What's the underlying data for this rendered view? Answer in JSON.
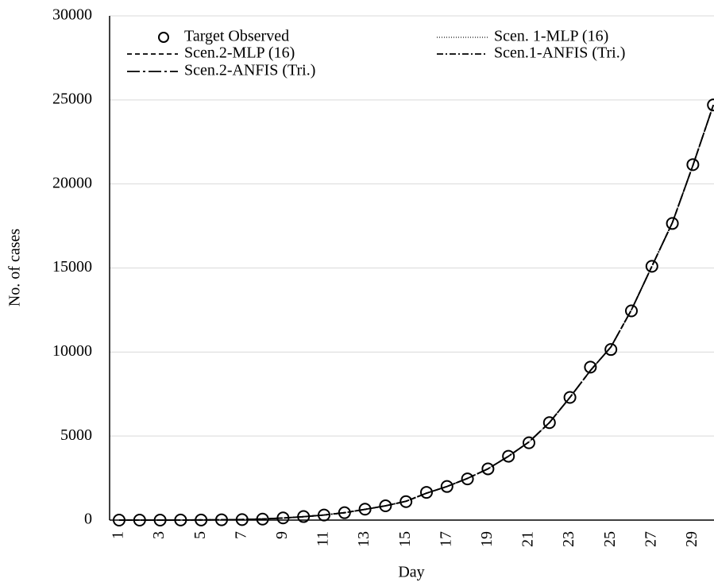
{
  "chart_data": {
    "type": "line",
    "x_label": "Day",
    "y_label": "No. of cases",
    "categories": [
      "1",
      null,
      "3",
      null,
      "5",
      null,
      "7",
      null,
      "9",
      null,
      "11",
      null,
      "13",
      null,
      "15",
      null,
      "17",
      null,
      "19",
      null,
      "21",
      null,
      "23",
      null,
      "25",
      null,
      "27",
      null,
      "29",
      null
    ],
    "series": [
      {
        "name": "Target Observed",
        "color": "#000000",
        "marker": "circle",
        "dash": "none",
        "values": [
          0,
          0,
          0,
          5,
          5,
          20,
          30,
          60,
          130,
          210,
          300,
          440,
          650,
          850,
          1100,
          1650,
          2000,
          2450,
          3050,
          3800,
          4600,
          5800,
          7300,
          9100,
          10150,
          12450,
          15100,
          17650,
          21150,
          24700
        ]
      },
      {
        "name": "Scen. 1-MLP (16)",
        "color": "#555555",
        "marker": "none",
        "dash": "1,2",
        "values": [
          0,
          0,
          0,
          5,
          10,
          20,
          35,
          65,
          125,
          205,
          300,
          440,
          640,
          850,
          1120,
          1600,
          2000,
          2480,
          3050,
          3800,
          4650,
          5800,
          7300,
          8900,
          10300,
          12500,
          15100,
          17700,
          21100,
          24700
        ]
      },
      {
        "name": "Scen.2-MLP (16)",
        "color": "#000000",
        "marker": "none",
        "dash": "6,4",
        "values": [
          0,
          0,
          0,
          5,
          10,
          20,
          35,
          65,
          125,
          205,
          300,
          440,
          640,
          850,
          1120,
          1600,
          2000,
          2480,
          3050,
          3800,
          4650,
          5800,
          7300,
          8900,
          10300,
          12500,
          15100,
          17700,
          21100,
          24700
        ]
      },
      {
        "name": "Scen.1-ANFIS (Tri.)",
        "color": "#000000",
        "marker": "none",
        "dash": "8,3,2,3",
        "values": [
          0,
          0,
          0,
          5,
          10,
          20,
          35,
          65,
          125,
          205,
          300,
          440,
          640,
          850,
          1120,
          1600,
          2000,
          2480,
          3050,
          3800,
          4650,
          5800,
          7300,
          8900,
          10300,
          12500,
          15100,
          17700,
          21100,
          24700
        ]
      },
      {
        "name": "Scen.2-ANFIS (Tri.)",
        "color": "#000000",
        "marker": "none",
        "dash": "16,4,3,4",
        "values": [
          0,
          0,
          0,
          5,
          10,
          20,
          35,
          65,
          125,
          205,
          300,
          440,
          640,
          850,
          1120,
          1600,
          2000,
          2480,
          3050,
          3800,
          4650,
          5800,
          7300,
          8900,
          10300,
          12500,
          15100,
          17700,
          21100,
          24700
        ]
      }
    ],
    "ylim": [
      0,
      30000
    ],
    "yticks": [
      0,
      5000,
      10000,
      15000,
      20000,
      25000,
      30000
    ],
    "grid": true
  }
}
